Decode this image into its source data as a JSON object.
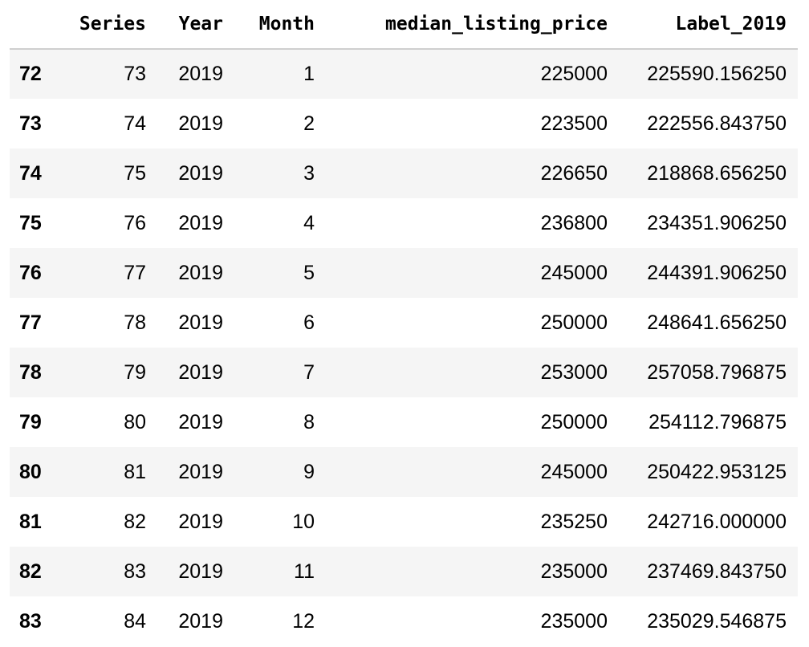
{
  "table": {
    "columns": [
      "Series",
      "Year",
      "Month",
      "median_listing_price",
      "Label_2019"
    ],
    "rows": [
      {
        "index": "72",
        "cells": [
          "73",
          "2019",
          "1",
          "225000",
          "225590.156250"
        ]
      },
      {
        "index": "73",
        "cells": [
          "74",
          "2019",
          "2",
          "223500",
          "222556.843750"
        ]
      },
      {
        "index": "74",
        "cells": [
          "75",
          "2019",
          "3",
          "226650",
          "218868.656250"
        ]
      },
      {
        "index": "75",
        "cells": [
          "76",
          "2019",
          "4",
          "236800",
          "234351.906250"
        ]
      },
      {
        "index": "76",
        "cells": [
          "77",
          "2019",
          "5",
          "245000",
          "244391.906250"
        ]
      },
      {
        "index": "77",
        "cells": [
          "78",
          "2019",
          "6",
          "250000",
          "248641.656250"
        ]
      },
      {
        "index": "78",
        "cells": [
          "79",
          "2019",
          "7",
          "253000",
          "257058.796875"
        ]
      },
      {
        "index": "79",
        "cells": [
          "80",
          "2019",
          "8",
          "250000",
          "254112.796875"
        ]
      },
      {
        "index": "80",
        "cells": [
          "81",
          "2019",
          "9",
          "245000",
          "250422.953125"
        ]
      },
      {
        "index": "81",
        "cells": [
          "82",
          "2019",
          "10",
          "235250",
          "242716.000000"
        ]
      },
      {
        "index": "82",
        "cells": [
          "83",
          "2019",
          "11",
          "235000",
          "237469.843750"
        ]
      },
      {
        "index": "83",
        "cells": [
          "84",
          "2019",
          "12",
          "235000",
          "235029.546875"
        ]
      }
    ]
  }
}
